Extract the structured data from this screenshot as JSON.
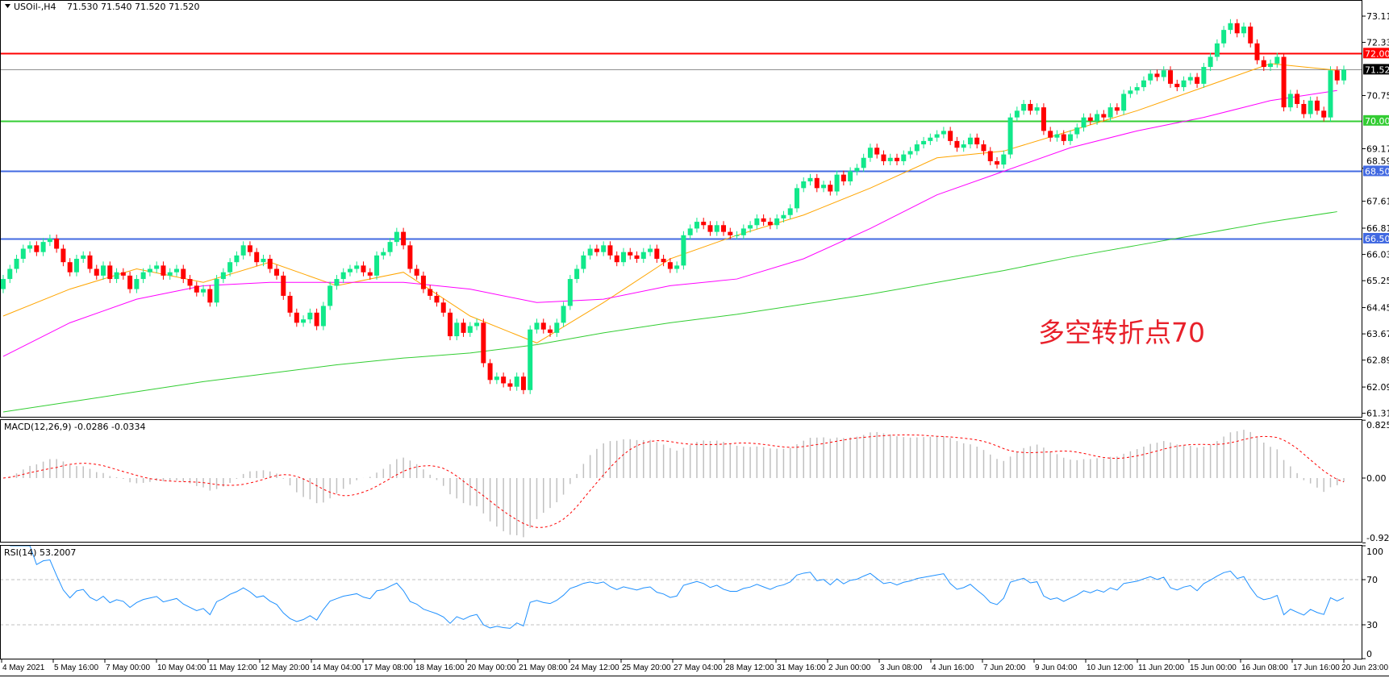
{
  "header": {
    "symbol": "USOil-,H4",
    "ohlc": "71.530 71.540 71.520 71.520"
  },
  "macd_header": "MACD(12,26,9) -0.0286 -0.0334",
  "rsi_header": "RSI(14) 53.2007",
  "annotation": "多空转折点70",
  "colors": {
    "up": "#11e88a",
    "down": "#ff0000",
    "ma_fast": "#ffa500",
    "ma_mid": "#ff00ff",
    "ma_slow": "#32cd32",
    "line_72": "#ff0000",
    "line_70": "#33cc33",
    "line_blue": "#4169e1",
    "rsi": "#1e90ff",
    "macd_hist": "#c0c0c0",
    "macd_signal": "#ff0000"
  },
  "chart_data": {
    "type": "candlestick",
    "price_axis": {
      "ticks": [
        "73.110",
        "72.330",
        "70.750",
        "69.170",
        "68.590",
        "67.610",
        "66.810",
        "66.030",
        "65.250",
        "64.450",
        "63.670",
        "62.890",
        "62.090",
        "61.310"
      ]
    },
    "current_price": "71.520",
    "horizontal_lines": [
      {
        "value": 72.0,
        "label": "72.000",
        "color": "#ff0000"
      },
      {
        "value": 70.0,
        "label": "70.000",
        "color": "#33cc33"
      },
      {
        "value": 68.5,
        "label": "68.500",
        "color": "#4169e1"
      },
      {
        "value": 66.5,
        "label": "66.500",
        "color": "#4169e1"
      }
    ],
    "first_open": 65.0,
    "closes": [
      65.3,
      65.6,
      65.9,
      66.2,
      66.3,
      66.1,
      66.4,
      66.5,
      66.2,
      65.8,
      65.5,
      65.9,
      66.0,
      65.6,
      65.4,
      65.7,
      65.3,
      65.5,
      65.4,
      65.0,
      65.3,
      65.5,
      65.6,
      65.7,
      65.4,
      65.5,
      65.6,
      65.3,
      65.1,
      64.9,
      65.0,
      64.6,
      65.3,
      65.5,
      65.8,
      66.0,
      66.3,
      66.1,
      65.8,
      65.9,
      65.6,
      65.4,
      64.8,
      64.3,
      64.0,
      64.1,
      64.3,
      63.9,
      64.5,
      65.1,
      65.3,
      65.5,
      65.6,
      65.7,
      65.5,
      65.4,
      66.0,
      66.1,
      66.4,
      66.7,
      66.3,
      65.6,
      65.4,
      65.0,
      64.8,
      64.6,
      64.3,
      63.6,
      64.0,
      63.7,
      63.9,
      64.0,
      62.8,
      62.3,
      62.4,
      62.2,
      62.1,
      62.4,
      62.0,
      63.8,
      64.0,
      63.8,
      63.7,
      64.0,
      64.5,
      65.3,
      65.6,
      66.0,
      66.2,
      66.1,
      66.3,
      66.0,
      65.8,
      66.1,
      66.0,
      65.9,
      66.1,
      66.2,
      65.9,
      65.8,
      65.6,
      65.7,
      66.6,
      66.8,
      67.0,
      66.9,
      66.7,
      66.9,
      66.7,
      66.6,
      66.6,
      66.8,
      66.9,
      67.1,
      67.0,
      66.9,
      67.1,
      67.2,
      67.4,
      68.0,
      68.2,
      68.3,
      68.0,
      68.1,
      67.9,
      68.4,
      68.2,
      68.5,
      68.6,
      68.9,
      69.2,
      69.0,
      68.8,
      68.9,
      68.8,
      69.0,
      69.1,
      69.3,
      69.4,
      69.5,
      69.6,
      69.7,
      69.4,
      69.2,
      69.3,
      69.5,
      69.3,
      69.1,
      68.8,
      68.7,
      69.0,
      70.1,
      70.3,
      70.5,
      70.3,
      70.4,
      69.7,
      69.5,
      69.6,
      69.4,
      69.6,
      69.8,
      70.1,
      70.0,
      70.2,
      70.1,
      70.4,
      70.3,
      70.8,
      70.9,
      71.0,
      71.2,
      71.4,
      71.3,
      71.5,
      71.1,
      71.0,
      71.2,
      71.3,
      71.1,
      71.6,
      71.9,
      72.3,
      72.7,
      72.9,
      72.6,
      72.8,
      72.3,
      71.8,
      71.6,
      71.7,
      71.9,
      70.4,
      70.8,
      70.5,
      70.2,
      70.6,
      70.3,
      70.1,
      71.5,
      71.2,
      71.52
    ],
    "moving_averages_every_10_bars": {
      "fast": [
        64.2,
        65.0,
        65.6,
        65.2,
        65.8,
        65.1,
        65.5,
        64.2,
        63.4,
        64.6,
        65.9,
        66.6,
        67.2,
        68.0,
        68.9,
        69.1,
        69.7,
        70.3,
        71.0,
        71.7,
        71.5
      ],
      "mid": [
        63.0,
        64.0,
        64.7,
        65.1,
        65.2,
        65.2,
        65.2,
        65.0,
        64.6,
        64.7,
        65.1,
        65.3,
        65.9,
        66.8,
        67.8,
        68.5,
        69.2,
        69.7,
        70.1,
        70.6,
        70.9
      ],
      "slow": [
        61.35,
        61.65,
        61.95,
        62.25,
        62.5,
        62.75,
        62.95,
        63.1,
        63.35,
        63.7,
        64.0,
        64.25,
        64.55,
        64.85,
        65.2,
        65.55,
        65.95,
        66.3,
        66.65,
        67.0,
        67.3
      ]
    },
    "macd_axis": [
      "0.8254",
      "0.00",
      "-0.9234"
    ],
    "macd_range": [
      -0.9234,
      0.8254
    ],
    "rsi_axis": [
      "100",
      "70",
      "30",
      "0"
    ],
    "rsi_levels": [
      70,
      30
    ],
    "time_labels": [
      "4 May 2021",
      "5 May 16:00",
      "7 May 00:00",
      "10 May 04:00",
      "11 May 12:00",
      "12 May 20:00",
      "14 May 04:00",
      "17 May 08:00",
      "18 May 16:00",
      "20 May 00:00",
      "21 May 08:00",
      "24 May 12:00",
      "25 May 20:00",
      "27 May 04:00",
      "28 May 12:00",
      "31 May 16:00",
      "2 Jun 00:00",
      "3 Jun 08:00",
      "4 Jun 16:00",
      "7 Jun 20:00",
      "9 Jun 04:00",
      "10 Jun 12:00",
      "11 Jun 20:00",
      "15 Jun 00:00",
      "16 Jun 08:00",
      "17 Jun 16:00",
      "20 Jun 23:00"
    ]
  }
}
